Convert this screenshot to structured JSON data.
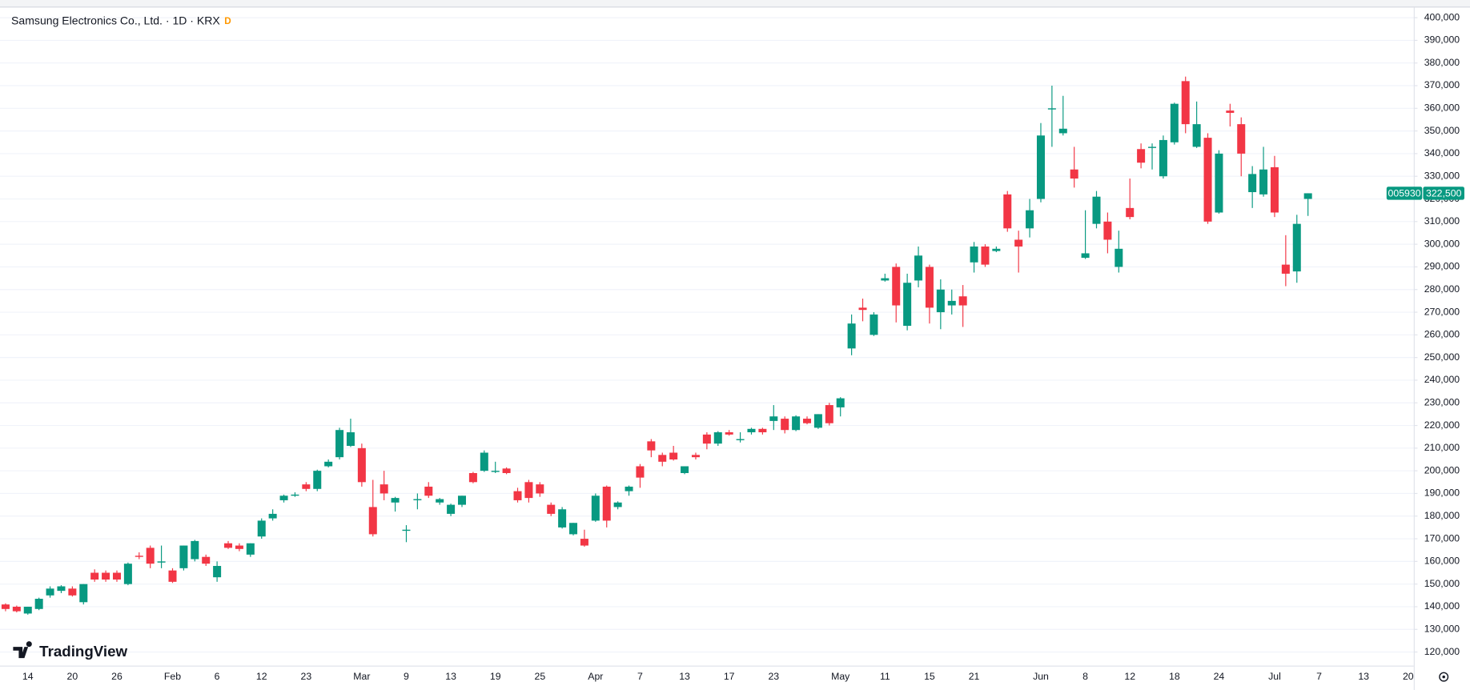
{
  "chart_data": {
    "type": "candlestick",
    "title": "Samsung Electronics Co., Ltd. · 1D · KRX",
    "badge": "D",
    "watermark": "TradingView",
    "up_color": "#089981",
    "down_color": "#f23645",
    "grid": true,
    "categories": [
      null,
      null,
      "14",
      null,
      null,
      null,
      "20",
      null,
      null,
      null,
      "26",
      null,
      null,
      null,
      null,
      "Feb",
      null,
      null,
      null,
      "6",
      null,
      null,
      null,
      "12",
      null,
      null,
      null,
      "23",
      null,
      null,
      null,
      null,
      "Mar",
      null,
      null,
      null,
      "9",
      null,
      null,
      null,
      "13",
      null,
      null,
      null,
      "19",
      null,
      null,
      null,
      "25",
      null,
      null,
      null,
      null,
      "Apr",
      null,
      null,
      null,
      "7",
      null,
      null,
      null,
      "13",
      null,
      null,
      null,
      "17",
      null,
      null,
      null,
      "23",
      null,
      null,
      null,
      null,
      null,
      "May",
      null,
      null,
      null,
      "11",
      null,
      null,
      null,
      "15",
      null,
      null,
      null,
      "21",
      null,
      null,
      null,
      null,
      null,
      "Jun",
      null,
      null,
      null,
      "8",
      null,
      null,
      null,
      "12",
      null,
      null,
      null,
      "18",
      null,
      null,
      null,
      "24",
      null,
      null,
      null,
      null,
      "Jul",
      null,
      null,
      null,
      "7",
      null,
      null,
      null,
      "13",
      null,
      null,
      null,
      "20"
    ],
    "open": [
      141000,
      140000,
      137000,
      139000,
      145000,
      147000,
      148000,
      142000,
      155000,
      155000,
      155000,
      150000,
      162500,
      166000,
      159500,
      156000,
      157000,
      161000,
      162000,
      153000,
      168000,
      167000,
      163000,
      171000,
      179000,
      187000,
      189000,
      194000,
      192000,
      202000,
      206000,
      211000,
      210000,
      184000,
      194000,
      186000,
      173500,
      187000,
      193000,
      186000,
      181000,
      185000,
      199000,
      200000,
      199500,
      201000,
      191000,
      195000,
      194000,
      185000,
      175000,
      172000,
      170000,
      178000,
      193000,
      184000,
      191000,
      202000,
      213000,
      207000,
      208000,
      199000,
      207000,
      216000,
      212000,
      217000,
      213500,
      217000,
      218500,
      222000,
      223000,
      218000,
      223000,
      219000,
      229000,
      228000,
      254000,
      272000,
      260000,
      284000,
      290000,
      264000,
      284000,
      290000,
      270000,
      273000,
      277000,
      292000,
      299000,
      297000,
      322000,
      302000,
      307000,
      320000,
      359500,
      349000,
      333000,
      294000,
      309000,
      310000,
      290000,
      316000,
      342000,
      342500,
      330000,
      345000,
      372000,
      343000,
      347000,
      314000,
      359000,
      353000,
      323000,
      322000,
      334000,
      291000,
      288000,
      320000,
      null,
      null,
      null,
      null,
      null,
      null,
      null,
      null,
      null
    ],
    "high": [
      141500,
      140500,
      140000,
      144000,
      149000,
      149500,
      149000,
      150000,
      156500,
      156000,
      156000,
      159500,
      164000,
      167000,
      167000,
      157000,
      167000,
      169500,
      163000,
      160000,
      169000,
      168000,
      168000,
      179000,
      183000,
      189500,
      190500,
      195000,
      200500,
      205000,
      219000,
      223000,
      212000,
      196000,
      200000,
      188500,
      176000,
      190000,
      195000,
      188000,
      185500,
      189000,
      199500,
      209000,
      204000,
      201500,
      192500,
      196000,
      195000,
      186000,
      184000,
      177000,
      174000,
      190000,
      193500,
      186500,
      193500,
      203000,
      214000,
      208000,
      211000,
      202000,
      208000,
      217000,
      217500,
      218000,
      217000,
      219000,
      219000,
      229000,
      224000,
      224500,
      224000,
      225000,
      230000,
      232500,
      269000,
      276000,
      270000,
      287000,
      291500,
      287000,
      299000,
      291000,
      284500,
      280000,
      282000,
      301000,
      300000,
      299000,
      323500,
      306000,
      320000,
      353500,
      370000,
      365500,
      343000,
      315000,
      323500,
      314000,
      306000,
      329000,
      344500,
      344500,
      348000,
      362500,
      374000,
      363000,
      349000,
      341500,
      362000,
      356000,
      334500,
      343000,
      339000,
      304000,
      313000,
      322500,
      null,
      null,
      null,
      null,
      null,
      null,
      null,
      null,
      null
    ],
    "low": [
      138000,
      137500,
      136500,
      138500,
      144000,
      146000,
      144500,
      141000,
      151000,
      151000,
      151000,
      149500,
      161000,
      157000,
      157000,
      150500,
      156000,
      160000,
      158000,
      151000,
      165500,
      164500,
      162000,
      170000,
      178000,
      186000,
      188500,
      191000,
      191000,
      201500,
      205000,
      210500,
      193000,
      171000,
      187000,
      182000,
      168500,
      183000,
      188000,
      185000,
      180000,
      184000,
      194500,
      199500,
      199000,
      198500,
      186000,
      186000,
      188500,
      180000,
      174500,
      171500,
      166500,
      177500,
      175000,
      183000,
      189000,
      192500,
      206000,
      202000,
      204500,
      198500,
      205000,
      209500,
      211000,
      215500,
      212500,
      216000,
      216000,
      218000,
      216500,
      217500,
      220500,
      218500,
      220000,
      224000,
      251000,
      266000,
      259500,
      283500,
      265500,
      262000,
      281000,
      265000,
      262500,
      269000,
      263500,
      287500,
      290000,
      296500,
      305500,
      287500,
      303000,
      318500,
      343000,
      348000,
      325000,
      293500,
      307000,
      296000,
      287500,
      311000,
      333500,
      333000,
      329000,
      344000,
      349000,
      342500,
      309000,
      313500,
      352000,
      330000,
      316000,
      321000,
      312000,
      281500,
      283000,
      312500,
      null,
      null,
      null,
      null,
      null,
      null,
      null,
      null,
      null
    ],
    "close": [
      139000,
      138000,
      140000,
      143500,
      148000,
      149000,
      145000,
      150000,
      152000,
      152000,
      152000,
      159000,
      162000,
      159000,
      160000,
      151000,
      167000,
      169000,
      159000,
      158000,
      166000,
      165500,
      168000,
      178000,
      181000,
      189000,
      189500,
      192000,
      200000,
      204000,
      218000,
      217000,
      195000,
      172000,
      190000,
      188000,
      174000,
      187500,
      189000,
      187500,
      185000,
      189000,
      195000,
      208000,
      200000,
      199000,
      187000,
      188000,
      190000,
      181000,
      183000,
      177000,
      167000,
      189000,
      178000,
      186000,
      193000,
      197000,
      209000,
      204000,
      205000,
      202000,
      206000,
      212000,
      217000,
      216000,
      214000,
      218500,
      217000,
      224000,
      218000,
      224000,
      221000,
      225000,
      221000,
      232000,
      265000,
      271000,
      269000,
      285000,
      273000,
      283000,
      295000,
      272000,
      280000,
      275000,
      273000,
      299000,
      291000,
      298000,
      307000,
      299000,
      315000,
      348000,
      360000,
      351000,
      329000,
      296000,
      321000,
      302000,
      298000,
      312000,
      336000,
      343000,
      346000,
      362000,
      353000,
      353000,
      310000,
      340000,
      358000,
      340000,
      331000,
      333000,
      314000,
      287000,
      309000,
      322500,
      null,
      null,
      null,
      null,
      null,
      null,
      null,
      null,
      null
    ],
    "ylim": [
      114000,
      404500
    ],
    "yticks": [
      {
        "value": 120000,
        "label": "120,000"
      },
      {
        "value": 130000,
        "label": "130,000"
      },
      {
        "value": 140000,
        "label": "140,000"
      },
      {
        "value": 150000,
        "label": "150,000"
      },
      {
        "value": 160000,
        "label": "160,000"
      },
      {
        "value": 170000,
        "label": "170,000"
      },
      {
        "value": 180000,
        "label": "180,000"
      },
      {
        "value": 190000,
        "label": "190,000"
      },
      {
        "value": 200000,
        "label": "200,000"
      },
      {
        "value": 210000,
        "label": "210,000"
      },
      {
        "value": 220000,
        "label": "220,000"
      },
      {
        "value": 230000,
        "label": "230,000"
      },
      {
        "value": 240000,
        "label": "240,000"
      },
      {
        "value": 250000,
        "label": "250,000"
      },
      {
        "value": 260000,
        "label": "260,000"
      },
      {
        "value": 270000,
        "label": "270,000"
      },
      {
        "value": 280000,
        "label": "280,000"
      },
      {
        "value": 290000,
        "label": "290,000"
      },
      {
        "value": 300000,
        "label": "300,000"
      },
      {
        "value": 310000,
        "label": "310,000"
      },
      {
        "value": 320000,
        "label": "320,000"
      },
      {
        "value": 330000,
        "label": "330,000"
      },
      {
        "value": 340000,
        "label": "340,000"
      },
      {
        "value": 350000,
        "label": "350,000"
      },
      {
        "value": 360000,
        "label": "360,000"
      },
      {
        "value": 370000,
        "label": "370,000"
      },
      {
        "value": 380000,
        "label": "380,000"
      },
      {
        "value": 390000,
        "label": "390,000"
      },
      {
        "value": 400000,
        "label": "400,000"
      }
    ],
    "last_price_tag": {
      "symbol": "005930",
      "value": 322500,
      "label": "322,500"
    }
  }
}
